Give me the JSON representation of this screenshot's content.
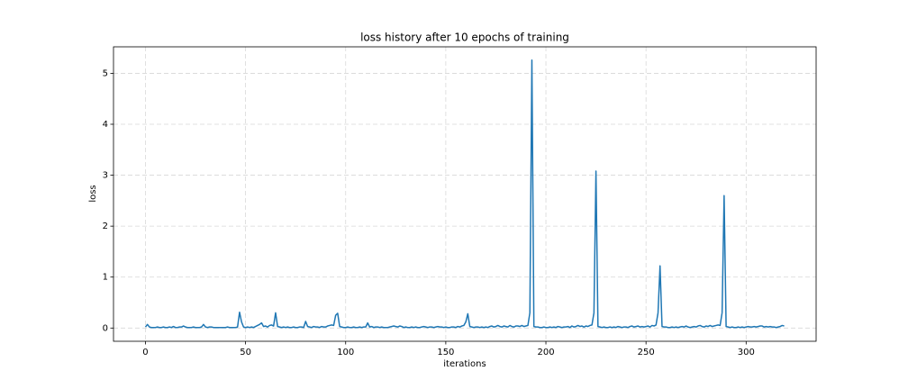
{
  "chart_data": {
    "type": "line",
    "title": "loss history after 10 epochs of training",
    "x_label": "iterations",
    "y_label": "loss",
    "x": [
      0,
      1,
      2,
      3,
      4,
      5,
      6,
      7,
      8,
      9,
      10,
      11,
      12,
      13,
      14,
      15,
      16,
      17,
      18,
      19,
      20,
      21,
      22,
      23,
      24,
      25,
      26,
      27,
      28,
      29,
      30,
      31,
      32,
      33,
      34,
      35,
      36,
      37,
      38,
      39,
      40,
      41,
      42,
      43,
      44,
      45,
      46,
      47,
      48,
      49,
      50,
      51,
      52,
      53,
      54,
      55,
      56,
      57,
      58,
      59,
      60,
      61,
      62,
      63,
      64,
      65,
      66,
      67,
      68,
      69,
      70,
      71,
      72,
      73,
      74,
      75,
      76,
      77,
      78,
      79,
      80,
      81,
      82,
      83,
      84,
      85,
      86,
      87,
      88,
      89,
      90,
      91,
      92,
      93,
      94,
      95,
      96,
      97,
      98,
      99,
      100,
      101,
      102,
      103,
      104,
      105,
      106,
      107,
      108,
      109,
      110,
      111,
      112,
      113,
      114,
      115,
      116,
      117,
      118,
      119,
      120,
      121,
      122,
      123,
      124,
      125,
      126,
      127,
      128,
      129,
      130,
      131,
      132,
      133,
      134,
      135,
      136,
      137,
      138,
      139,
      140,
      141,
      142,
      143,
      144,
      145,
      146,
      147,
      148,
      149,
      150,
      151,
      152,
      153,
      154,
      155,
      156,
      157,
      158,
      159,
      160,
      161,
      162,
      163,
      164,
      165,
      166,
      167,
      168,
      169,
      170,
      171,
      172,
      173,
      174,
      175,
      176,
      177,
      178,
      179,
      180,
      181,
      182,
      183,
      184,
      185,
      186,
      187,
      188,
      189,
      190,
      191,
      192,
      193,
      194,
      195,
      196,
      197,
      198,
      199,
      200,
      201,
      202,
      203,
      204,
      205,
      206,
      207,
      208,
      209,
      210,
      211,
      212,
      213,
      214,
      215,
      216,
      217,
      218,
      219,
      220,
      221,
      222,
      223,
      224,
      225,
      226,
      227,
      228,
      229,
      230,
      231,
      232,
      233,
      234,
      235,
      236,
      237,
      238,
      239,
      240,
      241,
      242,
      243,
      244,
      245,
      246,
      247,
      248,
      249,
      250,
      251,
      252,
      253,
      254,
      255,
      256,
      257,
      258,
      259,
      260,
      261,
      262,
      263,
      264,
      265,
      266,
      267,
      268,
      269,
      270,
      271,
      272,
      273,
      274,
      275,
      276,
      277,
      278,
      279,
      280,
      281,
      282,
      283,
      284,
      285,
      286,
      287,
      288,
      289,
      290,
      291,
      292,
      293,
      294,
      295,
      296,
      297,
      298,
      299,
      300,
      301,
      302,
      303,
      304,
      305,
      306,
      307,
      308,
      309,
      310,
      311,
      312,
      313,
      314,
      315,
      316,
      317,
      318,
      319
    ],
    "series": [
      {
        "color": "#1f77b4",
        "values": [
          0.02,
          0.07,
          0.02,
          0.01,
          0.01,
          0.01,
          0.02,
          0.01,
          0.01,
          0.02,
          0.01,
          0.01,
          0.02,
          0.01,
          0.03,
          0.01,
          0.01,
          0.02,
          0.02,
          0.04,
          0.02,
          0.01,
          0.01,
          0.01,
          0.02,
          0.01,
          0.01,
          0.01,
          0.02,
          0.07,
          0.02,
          0.01,
          0.02,
          0.02,
          0.01,
          0.01,
          0.01,
          0.01,
          0.01,
          0.01,
          0.01,
          0.02,
          0.01,
          0.01,
          0.01,
          0.01,
          0.02,
          0.31,
          0.12,
          0.02,
          0.01,
          0.02,
          0.01,
          0.02,
          0.01,
          0.03,
          0.05,
          0.07,
          0.1,
          0.03,
          0.04,
          0.02,
          0.05,
          0.06,
          0.04,
          0.3,
          0.03,
          0.02,
          0.01,
          0.02,
          0.01,
          0.02,
          0.01,
          0.01,
          0.02,
          0.01,
          0.01,
          0.02,
          0.02,
          0.01,
          0.13,
          0.03,
          0.02,
          0.01,
          0.03,
          0.02,
          0.02,
          0.01,
          0.03,
          0.02,
          0.02,
          0.04,
          0.05,
          0.06,
          0.05,
          0.25,
          0.29,
          0.03,
          0.02,
          0.01,
          0.01,
          0.02,
          0.01,
          0.01,
          0.02,
          0.01,
          0.01,
          0.02,
          0.01,
          0.02,
          0.02,
          0.1,
          0.02,
          0.03,
          0.01,
          0.02,
          0.02,
          0.01,
          0.02,
          0.01,
          0.01,
          0.01,
          0.02,
          0.03,
          0.04,
          0.03,
          0.02,
          0.04,
          0.03,
          0.01,
          0.02,
          0.01,
          0.01,
          0.02,
          0.01,
          0.02,
          0.01,
          0.01,
          0.02,
          0.03,
          0.02,
          0.01,
          0.02,
          0.02,
          0.01,
          0.02,
          0.03,
          0.02,
          0.02,
          0.01,
          0.02,
          0.01,
          0.01,
          0.02,
          0.02,
          0.01,
          0.03,
          0.02,
          0.04,
          0.05,
          0.12,
          0.28,
          0.03,
          0.02,
          0.01,
          0.02,
          0.02,
          0.01,
          0.02,
          0.01,
          0.02,
          0.01,
          0.03,
          0.04,
          0.02,
          0.03,
          0.05,
          0.03,
          0.02,
          0.04,
          0.03,
          0.02,
          0.05,
          0.03,
          0.02,
          0.04,
          0.04,
          0.03,
          0.05,
          0.03,
          0.04,
          0.05,
          0.3,
          5.26,
          0.03,
          0.02,
          0.02,
          0.01,
          0.01,
          0.02,
          0.01,
          0.01,
          0.02,
          0.01,
          0.02,
          0.01,
          0.03,
          0.02,
          0.01,
          0.02,
          0.02,
          0.03,
          0.01,
          0.04,
          0.02,
          0.03,
          0.05,
          0.03,
          0.04,
          0.02,
          0.04,
          0.03,
          0.05,
          0.06,
          0.3,
          3.08,
          0.03,
          0.02,
          0.01,
          0.02,
          0.01,
          0.01,
          0.02,
          0.01,
          0.02,
          0.01,
          0.03,
          0.02,
          0.01,
          0.02,
          0.02,
          0.01,
          0.03,
          0.04,
          0.02,
          0.03,
          0.04,
          0.02,
          0.03,
          0.02,
          0.03,
          0.04,
          0.02,
          0.05,
          0.04,
          0.06,
          0.3,
          1.22,
          0.03,
          0.02,
          0.02,
          0.01,
          0.01,
          0.02,
          0.01,
          0.02,
          0.01,
          0.02,
          0.03,
          0.02,
          0.04,
          0.02,
          0.01,
          0.02,
          0.03,
          0.02,
          0.04,
          0.05,
          0.03,
          0.02,
          0.04,
          0.03,
          0.05,
          0.03,
          0.04,
          0.05,
          0.06,
          0.05,
          0.3,
          2.6,
          0.03,
          0.02,
          0.01,
          0.02,
          0.01,
          0.01,
          0.02,
          0.01,
          0.02,
          0.01,
          0.02,
          0.03,
          0.02,
          0.02,
          0.03,
          0.02,
          0.03,
          0.04,
          0.04,
          0.02,
          0.03,
          0.02,
          0.03,
          0.02,
          0.02,
          0.01,
          0.02,
          0.03,
          0.05,
          0.04
        ]
      }
    ],
    "xlim": [
      -15.95,
      334.95
    ],
    "xticks": [
      0,
      50,
      100,
      150,
      200,
      250,
      300
    ],
    "ylim": [
      -0.26,
      5.52
    ],
    "yticks": [
      0,
      1,
      2,
      3,
      4,
      5
    ],
    "grid": true
  }
}
